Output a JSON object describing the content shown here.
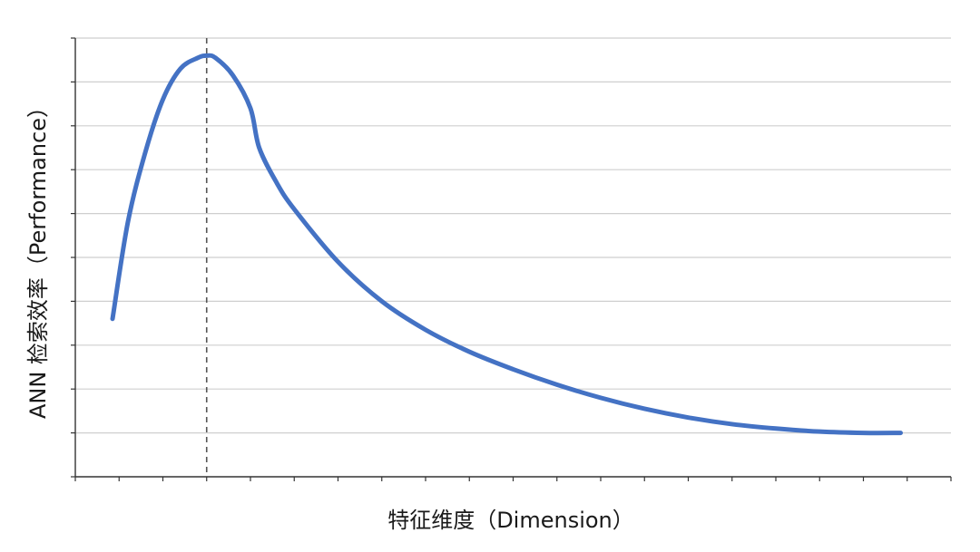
{
  "chart_data": {
    "type": "line",
    "title": "",
    "xlabel": "特征维度（Dimension）",
    "ylabel": "ANN 检索效率（Performance）",
    "grid": true,
    "xlim": [
      0,
      20
    ],
    "ylim": [
      0,
      10
    ],
    "x_tick_count": 20,
    "y_tick_count": 10,
    "tick_labels_shown": false,
    "reference_line": {
      "x": 3,
      "style": "dashed"
    },
    "series": [
      {
        "color": "#4472C4",
        "x": [
          0.85,
          1.2,
          1.6,
          2.0,
          2.4,
          2.8,
          3.0,
          3.2,
          3.6,
          4.0,
          4.2,
          4.6,
          5.0,
          6.0,
          7.0,
          8.0,
          9.0,
          10.0,
          11.0,
          12.0,
          13.0,
          14.0,
          15.0,
          16.0,
          17.0,
          18.0,
          18.85
        ],
        "y": [
          3.6,
          5.8,
          7.4,
          8.6,
          9.3,
          9.55,
          9.6,
          9.55,
          9.15,
          8.4,
          7.5,
          6.7,
          6.1,
          4.9,
          4.0,
          3.35,
          2.85,
          2.45,
          2.1,
          1.8,
          1.55,
          1.35,
          1.2,
          1.1,
          1.03,
          1.0,
          1.0
        ]
      }
    ]
  }
}
